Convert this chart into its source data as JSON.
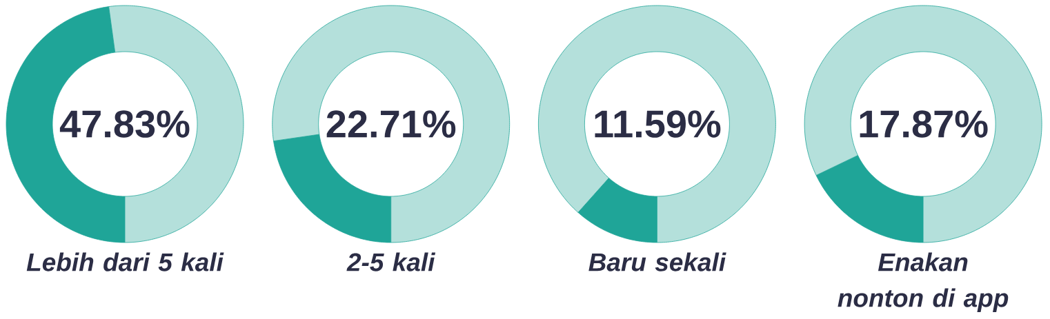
{
  "chart_data": [
    {
      "type": "donut",
      "title": "Lebih dari 5 kali",
      "categories": [
        null,
        null
      ],
      "values": [
        47.83,
        52.17
      ],
      "colors": [
        "#1fa598",
        "#b4e0db"
      ],
      "annotations": [
        "47.83%"
      ]
    },
    {
      "type": "donut",
      "title": "2-5 kali",
      "categories": [
        null,
        null
      ],
      "values": [
        22.71,
        77.29
      ],
      "colors": [
        "#1fa598",
        "#b4e0db"
      ],
      "annotations": [
        "22.71%"
      ]
    },
    {
      "type": "donut",
      "title": "Baru sekali",
      "categories": [
        null,
        null
      ],
      "values": [
        11.59,
        88.41
      ],
      "colors": [
        "#1fa598",
        "#b4e0db"
      ],
      "annotations": [
        "11.59%"
      ]
    },
    {
      "type": "donut",
      "title": "Enakan nonton di app",
      "categories": [
        null,
        null
      ],
      "values": [
        17.87,
        82.13
      ],
      "colors": [
        "#1fa598",
        "#b4e0db"
      ],
      "annotations": [
        "17.87%"
      ]
    }
  ]
}
